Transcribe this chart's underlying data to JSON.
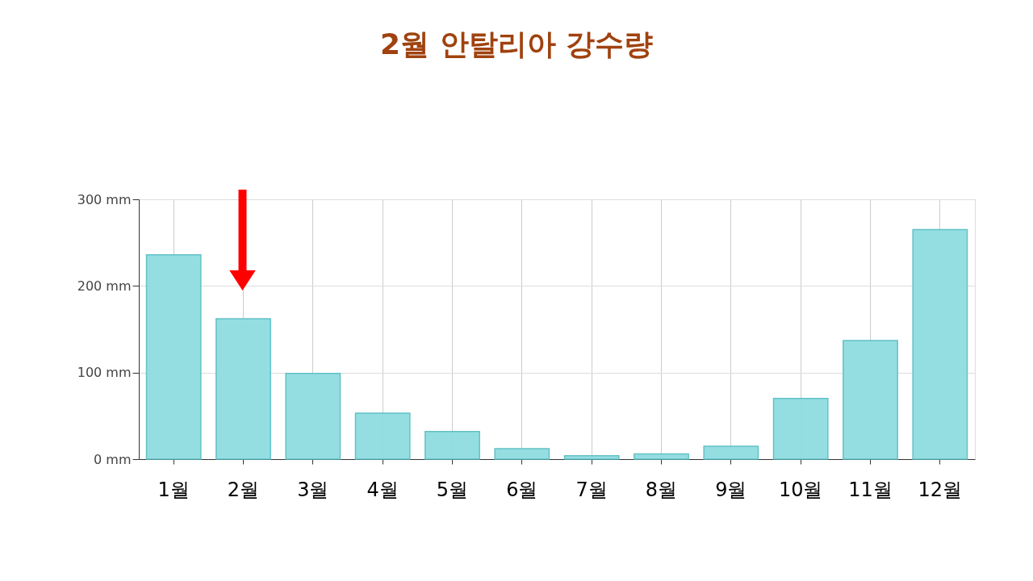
{
  "chart_data": {
    "type": "bar",
    "title": "2월  안탈리아  강수량",
    "categories": [
      "1월",
      "2월",
      "3월",
      "4월",
      "5월",
      "6월",
      "7월",
      "8월",
      "9월",
      "10월",
      "11월",
      "12월"
    ],
    "values": [
      236,
      162,
      99,
      53,
      32,
      12,
      4,
      6,
      15,
      70,
      137,
      265
    ],
    "color": "#8fdde0",
    "ylim": [
      0,
      300
    ],
    "yticks": [
      {
        "value": 0,
        "label": "0 mm"
      },
      {
        "value": 100,
        "label": "100 mm"
      },
      {
        "value": 200,
        "label": "200 mm"
      },
      {
        "value": 300,
        "label": "300 mm"
      }
    ],
    "grid": true
  }
}
